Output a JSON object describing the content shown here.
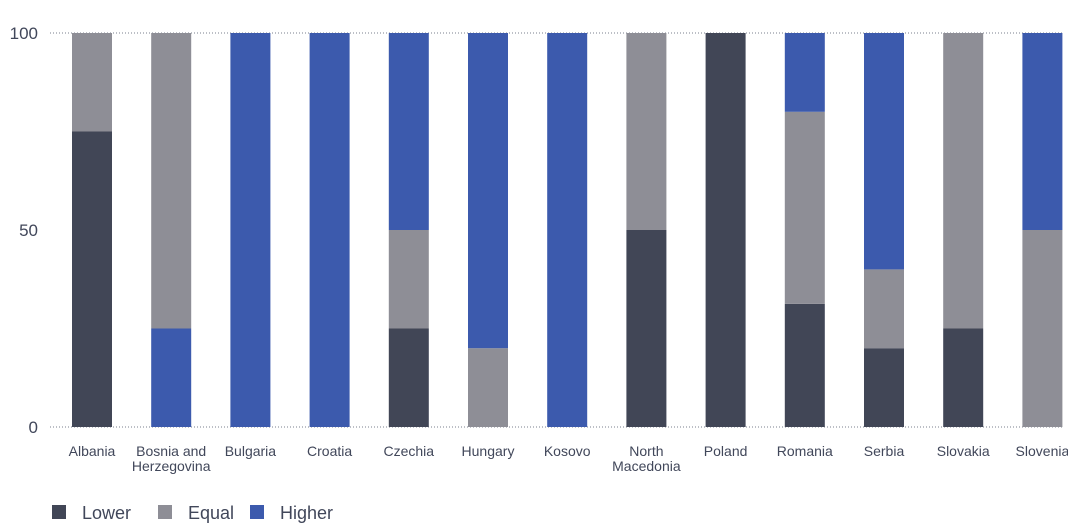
{
  "chart_data": {
    "type": "bar",
    "stacked": true,
    "categories": [
      "Albania",
      "Bosnia and Herzegovina",
      "Bulgaria",
      "Croatia",
      "Czechia",
      "Hungary",
      "Kosovo",
      "North Macedonia",
      "Poland",
      "Romania",
      "Serbia",
      "Slovakia",
      "Slovenia"
    ],
    "category_label_lines": [
      [
        "Albania"
      ],
      [
        "Bosnia and",
        "Herzegovina"
      ],
      [
        "Bulgaria"
      ],
      [
        "Croatia"
      ],
      [
        "Czechia"
      ],
      [
        "Hungary"
      ],
      [
        "Kosovo"
      ],
      [
        "North",
        "Macedonia"
      ],
      [
        "Poland"
      ],
      [
        "Romania"
      ],
      [
        "Serbia"
      ],
      [
        "Slovakia"
      ],
      [
        "Slovenia"
      ]
    ],
    "series": [
      {
        "name": "Lower",
        "color": "#414656",
        "values": [
          75,
          0,
          0,
          0,
          25,
          0,
          0,
          50,
          100,
          31.25,
          20,
          25,
          0
        ]
      },
      {
        "name": "Equal",
        "color": "#8e8e96",
        "values": [
          25,
          75,
          0,
          0,
          25,
          20,
          0,
          50,
          0,
          48.75,
          20,
          75,
          50
        ]
      },
      {
        "name": "Higher",
        "color": "#3c5aad",
        "values": [
          0,
          25,
          100,
          100,
          50,
          80,
          100,
          0,
          0,
          20,
          60,
          0,
          50
        ]
      }
    ],
    "stack_order": [
      "Lower",
      "Equal",
      "Higher"
    ],
    "bottom_series_override": {
      "Bosnia and Herzegovina": [
        "Higher",
        "Equal"
      ],
      "Hungary": [
        "Equal",
        "Higher"
      ],
      "Slovenia": [
        "Equal",
        "Higher"
      ]
    },
    "y_ticks": [
      "0",
      "50",
      "100"
    ],
    "ylim": [
      0,
      100
    ],
    "xlabel": "",
    "ylabel": "",
    "title": "",
    "grid": false,
    "legend_position": "bottom-left"
  }
}
